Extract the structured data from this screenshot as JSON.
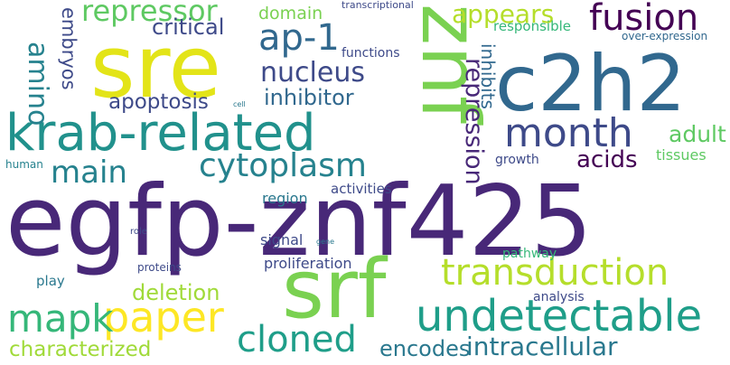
{
  "words": [
    {
      "id": "egfp-znf425",
      "text": "egfp-znf425",
      "color": "#482878"
    },
    {
      "id": "sre",
      "text": "sre",
      "color": "#e3e418"
    },
    {
      "id": "c2h2",
      "text": "c2h2",
      "color": "#31688e"
    },
    {
      "id": "znf",
      "text": "znf",
      "color": "#7ad151"
    },
    {
      "id": "srf",
      "text": "srf",
      "color": "#7ad151"
    },
    {
      "id": "krab-related",
      "text": "krab-related",
      "color": "#21918c"
    },
    {
      "id": "undetectable",
      "text": "undetectable",
      "color": "#1f9e89"
    },
    {
      "id": "transduction",
      "text": "transduction",
      "color": "#b5de2b"
    },
    {
      "id": "fusion",
      "text": "fusion",
      "color": "#440154"
    },
    {
      "id": "month",
      "text": "month",
      "color": "#3e4a89"
    },
    {
      "id": "paper",
      "text": "paper",
      "color": "#fde725"
    },
    {
      "id": "cytoplasm",
      "text": "cytoplasm",
      "color": "#26828e"
    },
    {
      "id": "mapk",
      "text": "mapk",
      "color": "#35b779"
    },
    {
      "id": "cloned",
      "text": "cloned",
      "color": "#1f9e89"
    },
    {
      "id": "repressor",
      "text": "repressor",
      "color": "#5ec962"
    },
    {
      "id": "ap-1",
      "text": "ap-1",
      "color": "#31688e"
    },
    {
      "id": "main",
      "text": "main",
      "color": "#26828e"
    },
    {
      "id": "nucleus",
      "text": "nucleus",
      "color": "#3e4a89"
    },
    {
      "id": "appears",
      "text": "appears",
      "color": "#b5de2b"
    },
    {
      "id": "intracellular",
      "text": "intracellular",
      "color": "#2a788e"
    },
    {
      "id": "characterized",
      "text": "characterized",
      "color": "#a0da39"
    },
    {
      "id": "encodes",
      "text": "encodes",
      "color": "#2a788e"
    },
    {
      "id": "deletion",
      "text": "deletion",
      "color": "#a0da39"
    },
    {
      "id": "amino",
      "text": "amino",
      "color": "#26828e"
    },
    {
      "id": "critical",
      "text": "critical",
      "color": "#3e4a89"
    },
    {
      "id": "repression",
      "text": "repression",
      "color": "#482878"
    },
    {
      "id": "inhibitor",
      "text": "inhibitor",
      "color": "#31688e"
    },
    {
      "id": "apoptosis",
      "text": "apoptosis",
      "color": "#3e4a89"
    },
    {
      "id": "acids",
      "text": "acids",
      "color": "#440154"
    },
    {
      "id": "adult",
      "text": "adult",
      "color": "#5ec962"
    },
    {
      "id": "embryos",
      "text": "embryos",
      "color": "#3e4a89"
    },
    {
      "id": "domain",
      "text": "domain",
      "color": "#7ad151"
    },
    {
      "id": "inhibits",
      "text": "inhibits",
      "color": "#31688e"
    },
    {
      "id": "responsible",
      "text": "responsible",
      "color": "#35b779"
    },
    {
      "id": "tissues",
      "text": "tissues",
      "color": "#5ec962"
    },
    {
      "id": "over-expression",
      "text": "over-expression",
      "color": "#31688e"
    },
    {
      "id": "functions",
      "text": "functions",
      "color": "#3e4a89"
    },
    {
      "id": "growth",
      "text": "growth",
      "color": "#3e4a89"
    },
    {
      "id": "region",
      "text": "region",
      "color": "#2a788e"
    },
    {
      "id": "activities",
      "text": "activities",
      "color": "#3e4a89"
    },
    {
      "id": "signal",
      "text": "signal",
      "color": "#3e4a89"
    },
    {
      "id": "proliferation",
      "text": "proliferation",
      "color": "#3e4a89"
    },
    {
      "id": "pathway",
      "text": "pathway",
      "color": "#35b779"
    },
    {
      "id": "analysis",
      "text": "analysis",
      "color": "#3e4a89"
    },
    {
      "id": "play",
      "text": "play",
      "color": "#2a788e"
    },
    {
      "id": "proteins",
      "text": "proteins",
      "color": "#3e4a89"
    },
    {
      "id": "human",
      "text": "human",
      "color": "#26828e"
    },
    {
      "id": "role",
      "text": "role",
      "color": "#3e4a89"
    },
    {
      "id": "gene",
      "text": "gene",
      "color": "#2a788e"
    },
    {
      "id": "cell",
      "text": "cell",
      "color": "#2a788e"
    },
    {
      "id": "transcriptional",
      "text": "transcriptional",
      "color": "#3e4a89"
    }
  ]
}
